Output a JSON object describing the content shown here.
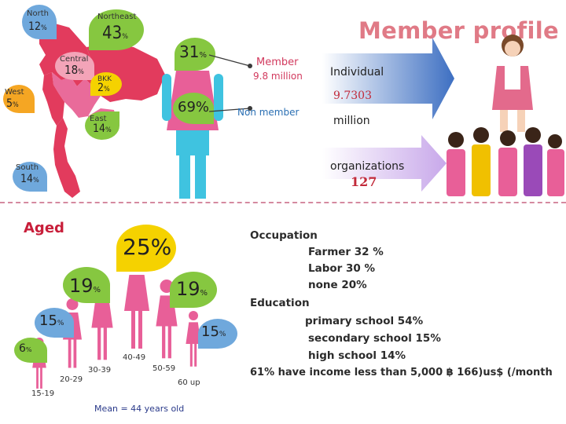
{
  "title": "Member profile",
  "map": {
    "north": {
      "label": "North",
      "value": "12",
      "unit": "%"
    },
    "northeast": {
      "label": "Northeast",
      "value": "43",
      "unit": "%"
    },
    "central": {
      "label": "Central",
      "value": "18",
      "unit": "%"
    },
    "bkk": {
      "label": "BKK",
      "value": "2",
      "unit": "%"
    },
    "west": {
      "label": "West",
      "value": "5",
      "unit": "%"
    },
    "east": {
      "label": "East",
      "value": "14",
      "unit": "%"
    },
    "south": {
      "label": "South",
      "value": "14",
      "unit": "%"
    }
  },
  "gender": {
    "female_value": "31",
    "female_unit": "%",
    "male_value": "69%"
  },
  "members": {
    "member_label": "Member",
    "member_count": "9.8 million",
    "non_member_label": "Non member",
    "individual_label": "Individual",
    "individual_count": "9.7303",
    "individual_unit": "million",
    "organizations_label": "organizations",
    "organizations_count": "127"
  },
  "aged": {
    "title": "Aged",
    "groups": [
      {
        "range": "15-19",
        "value": "6",
        "unit": "%",
        "fraction": 0.06
      },
      {
        "range": "20-29",
        "value": "15",
        "unit": "%",
        "fraction": 0.15
      },
      {
        "range": "30-39",
        "value": "19",
        "unit": "%",
        "fraction": 0.19
      },
      {
        "range": "40-49",
        "value": "25%",
        "unit": "",
        "fraction": 0.25
      },
      {
        "range": "50-59",
        "value": "19",
        "unit": "%",
        "fraction": 0.19
      },
      {
        "range": "60 up",
        "value": "15",
        "unit": "%",
        "fraction": 0.15
      }
    ],
    "mean": "Mean = 44 years old"
  },
  "profile": {
    "occupation_title": "Occupation",
    "occupation": [
      "Farmer 32 %",
      "Labor  30  %",
      "none   20%"
    ],
    "education_title": "Education",
    "education": [
      "primary school 54%",
      "secondary school 15%",
      "high school  14%"
    ],
    "income": "61% have income less than 5,000 ฿  166)us$ (/month"
  },
  "colors": {
    "map_red": "#e23b5d",
    "map_pink": "#e96b9a",
    "female_pink": "#e85f98",
    "male_cyan": "#3fc3e0",
    "bubble_green": "#86c740",
    "bubble_orange": "#f5a623",
    "bubble_yellow": "#f5d200",
    "bubble_pink": "#f3a4b8",
    "bubble_blue": "#6fa8dc",
    "title_pink": "#e07a86",
    "arrow_blue": "#3d6fc2",
    "arrow_lavender": "#c8a8ea"
  }
}
